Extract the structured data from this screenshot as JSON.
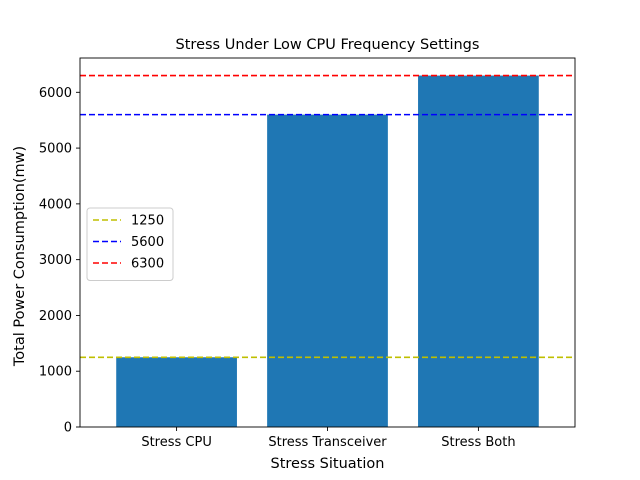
{
  "chart_data": {
    "type": "bar",
    "title": "Stress Under Low CPU Frequency Settings",
    "xlabel": "Stress Situation",
    "ylabel": "Total Power Consumption(mw)",
    "categories": [
      "Stress CPU",
      "Stress Transceiver",
      "Stress Both"
    ],
    "values": [
      1250,
      5600,
      6300
    ],
    "ylim": [
      0,
      6615
    ],
    "yticks": [
      0,
      1000,
      2000,
      3000,
      4000,
      5000,
      6000
    ],
    "bar_color": "#1f77b4",
    "reference_lines": [
      {
        "label": "1250",
        "value": 1250,
        "color": "#bfbf00",
        "style": "dashed"
      },
      {
        "label": "5600",
        "value": 5600,
        "color": "#0000ff",
        "style": "dashed"
      },
      {
        "label": "6300",
        "value": 6300,
        "color": "#ff0000",
        "style": "dashed"
      }
    ],
    "legend_position": "center-left",
    "grid": false
  }
}
